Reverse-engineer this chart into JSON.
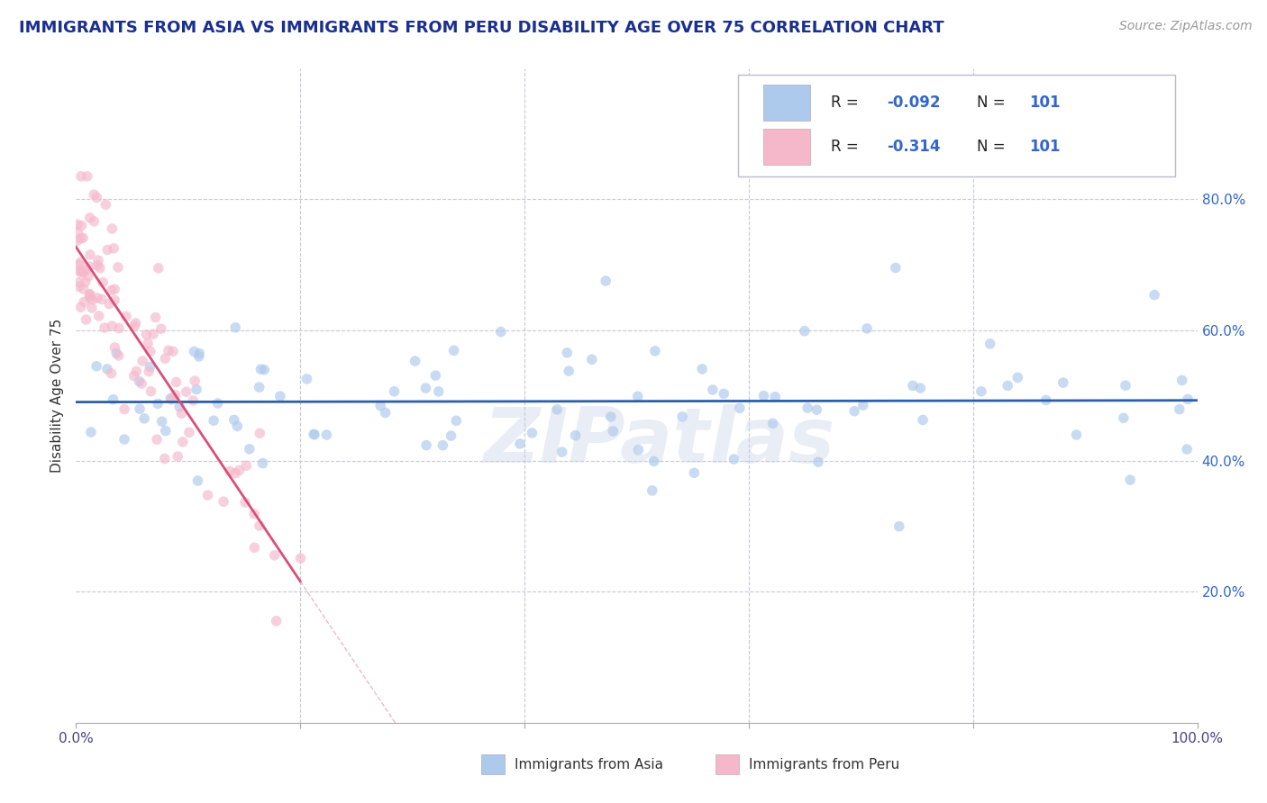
{
  "title": "IMMIGRANTS FROM ASIA VS IMMIGRANTS FROM PERU DISABILITY AGE OVER 75 CORRELATION CHART",
  "source": "Source: ZipAtlas.com",
  "ylabel": "Disability Age Over 75",
  "watermark": "ZIPatlas",
  "legend_asia_R": "-0.092",
  "legend_asia_N": "101",
  "legend_asia_fill": "#adc9eb",
  "legend_asia_line": "#2d5fa8",
  "legend_peru_R": "-0.314",
  "legend_peru_N": "101",
  "legend_peru_fill": "#f5b8cb",
  "legend_peru_line": "#d94f78",
  "xlim": [
    0.0,
    1.0
  ],
  "ylim": [
    0.0,
    1.0
  ],
  "right_ytick_vals": [
    0.2,
    0.4,
    0.6,
    0.8
  ],
  "right_ytick_labels": [
    "20.0%",
    "40.0%",
    "60.0%",
    "80.0%"
  ],
  "xtick_vals": [
    0.0,
    0.2,
    0.4,
    0.6,
    0.8,
    1.0
  ],
  "xtick_labels": [
    "0.0%",
    "",
    "",
    "",
    "",
    "100.0%"
  ],
  "grid_color": "#c8c8d8",
  "bg_color": "#ffffff",
  "title_color": "#1a2f8f",
  "scatter_size": 70,
  "scatter_alpha": 0.65,
  "legend_R_color": "#3366cc",
  "legend_N_color": "#3366cc"
}
